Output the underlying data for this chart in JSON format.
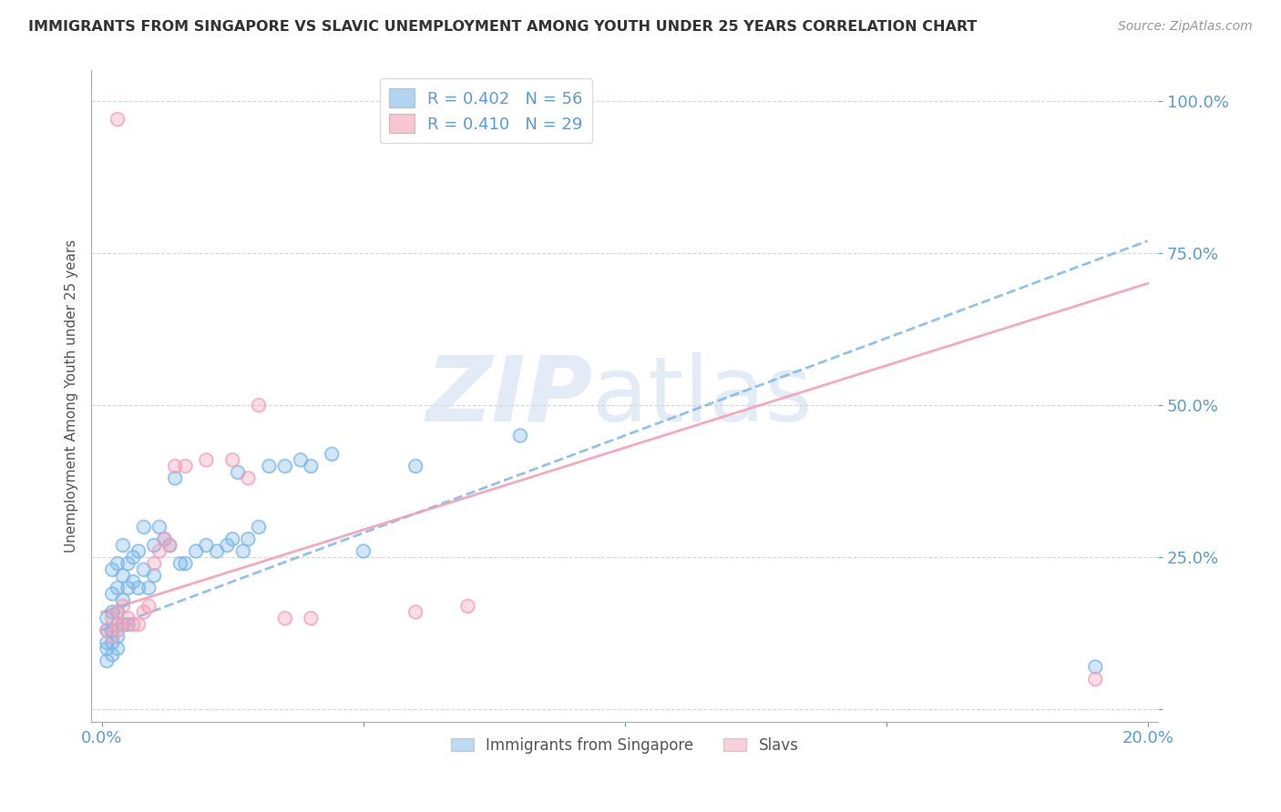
{
  "title": "IMMIGRANTS FROM SINGAPORE VS SLAVIC UNEMPLOYMENT AMONG YOUTH UNDER 25 YEARS CORRELATION CHART",
  "source": "Source: ZipAtlas.com",
  "ylabel": "Unemployment Among Youth under 25 years",
  "xlim": [
    -0.002,
    0.202
  ],
  "ylim": [
    -0.02,
    1.05
  ],
  "xticks": [
    0.0,
    0.05,
    0.1,
    0.15,
    0.2
  ],
  "xtick_labels": [
    "0.0%",
    "",
    "",
    "",
    "20.0%"
  ],
  "yticks": [
    0.0,
    0.25,
    0.5,
    0.75,
    1.0
  ],
  "ytick_labels": [
    "",
    "25.0%",
    "50.0%",
    "75.0%",
    "100.0%"
  ],
  "blue_R": 0.402,
  "blue_N": 56,
  "pink_R": 0.41,
  "pink_N": 29,
  "blue_label": "Immigrants from Singapore",
  "pink_label": "Slavs",
  "blue_color": "#7DB8E8",
  "pink_color": "#F4A0B5",
  "title_color": "#333333",
  "axis_color": "#5B9BD5",
  "grid_color": "#CCCCCC",
  "blue_line_x0": 0.0,
  "blue_line_y0": 0.13,
  "blue_line_x1": 0.2,
  "blue_line_y1": 0.77,
  "pink_line_x0": 0.0,
  "pink_line_y0": 0.16,
  "pink_line_x1": 0.2,
  "pink_line_y1": 0.7,
  "blue_scatter_x": [
    0.001,
    0.001,
    0.001,
    0.001,
    0.001,
    0.002,
    0.002,
    0.002,
    0.002,
    0.002,
    0.002,
    0.003,
    0.003,
    0.003,
    0.003,
    0.003,
    0.004,
    0.004,
    0.004,
    0.004,
    0.005,
    0.005,
    0.005,
    0.006,
    0.006,
    0.007,
    0.007,
    0.008,
    0.008,
    0.009,
    0.01,
    0.01,
    0.011,
    0.012,
    0.013,
    0.014,
    0.015,
    0.016,
    0.018,
    0.02,
    0.022,
    0.024,
    0.025,
    0.026,
    0.027,
    0.028,
    0.03,
    0.032,
    0.035,
    0.038,
    0.04,
    0.044,
    0.05,
    0.06,
    0.08,
    0.19
  ],
  "blue_scatter_y": [
    0.08,
    0.1,
    0.11,
    0.13,
    0.15,
    0.09,
    0.11,
    0.13,
    0.16,
    0.19,
    0.23,
    0.1,
    0.12,
    0.16,
    0.2,
    0.24,
    0.14,
    0.18,
    0.22,
    0.27,
    0.14,
    0.2,
    0.24,
    0.21,
    0.25,
    0.2,
    0.26,
    0.23,
    0.3,
    0.2,
    0.22,
    0.27,
    0.3,
    0.28,
    0.27,
    0.38,
    0.24,
    0.24,
    0.26,
    0.27,
    0.26,
    0.27,
    0.28,
    0.39,
    0.26,
    0.28,
    0.3,
    0.4,
    0.4,
    0.41,
    0.4,
    0.42,
    0.26,
    0.4,
    0.45,
    0.07
  ],
  "pink_scatter_x": [
    0.001,
    0.002,
    0.002,
    0.003,
    0.003,
    0.003,
    0.004,
    0.004,
    0.005,
    0.006,
    0.007,
    0.008,
    0.009,
    0.01,
    0.011,
    0.012,
    0.013,
    0.014,
    0.016,
    0.02,
    0.025,
    0.028,
    0.03,
    0.035,
    0.04,
    0.06,
    0.07,
    0.19,
    0.003
  ],
  "pink_scatter_y": [
    0.13,
    0.15,
    0.12,
    0.16,
    0.14,
    0.13,
    0.17,
    0.14,
    0.15,
    0.14,
    0.14,
    0.16,
    0.17,
    0.24,
    0.26,
    0.28,
    0.27,
    0.4,
    0.4,
    0.41,
    0.41,
    0.38,
    0.5,
    0.15,
    0.15,
    0.16,
    0.17,
    0.05,
    0.97
  ]
}
